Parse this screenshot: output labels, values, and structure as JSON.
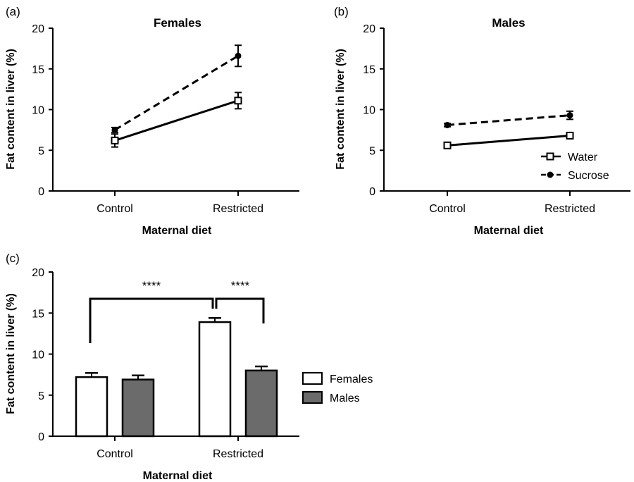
{
  "chart_data": [
    {
      "panel_label": "(a)",
      "type": "line",
      "title": "Females",
      "xlabel": "Maternal diet",
      "ylabel": "Fat content in liver (%)",
      "categories": [
        "Control",
        "Restricted"
      ],
      "ylim": [
        0,
        20
      ],
      "yticks": [
        "0",
        "5",
        "10",
        "15",
        "20"
      ],
      "series": [
        {
          "name": "Water",
          "marker": "open-square",
          "line": "solid",
          "values": [
            6.2,
            11.1
          ],
          "errors": [
            0.8,
            1.0
          ]
        },
        {
          "name": "Sucrose",
          "marker": "filled-circle",
          "line": "dashed",
          "values": [
            7.5,
            16.6
          ],
          "errors": [
            0.3,
            1.3
          ]
        }
      ]
    },
    {
      "panel_label": "(b)",
      "type": "line",
      "title": "Males",
      "xlabel": "Maternal diet",
      "ylabel": "Fat content in liver (%)",
      "categories": [
        "Control",
        "Restricted"
      ],
      "ylim": [
        0,
        20
      ],
      "yticks": [
        "0",
        "5",
        "10",
        "15",
        "20"
      ],
      "legend": [
        "Water",
        "Sucrose"
      ],
      "series": [
        {
          "name": "Water",
          "marker": "open-square",
          "line": "solid",
          "values": [
            5.6,
            6.8
          ],
          "errors": [
            0.3,
            0.3
          ]
        },
        {
          "name": "Sucrose",
          "marker": "filled-circle",
          "line": "dashed",
          "values": [
            8.1,
            9.3
          ],
          "errors": [
            0.2,
            0.5
          ]
        }
      ]
    },
    {
      "panel_label": "(c)",
      "type": "bar",
      "title": "",
      "xlabel": "Maternal diet",
      "ylabel": "Fat content in liver (%)",
      "categories": [
        "Control",
        "Restricted"
      ],
      "ylim": [
        0,
        20
      ],
      "yticks": [
        "0",
        "5",
        "10",
        "15",
        "20"
      ],
      "legend": [
        "Females",
        "Males"
      ],
      "series": [
        {
          "name": "Females",
          "color": "#ffffff",
          "values": [
            7.2,
            13.9
          ],
          "errors": [
            0.5,
            0.5
          ]
        },
        {
          "name": "Males",
          "color": "#6b6b6b",
          "values": [
            6.9,
            8.0
          ],
          "errors": [
            0.5,
            0.5
          ]
        }
      ],
      "annotations": [
        {
          "text": "****",
          "between": "Control vs Restricted (Females)"
        },
        {
          "text": "****",
          "between": "Restricted Females vs Restricted Males"
        }
      ]
    }
  ]
}
